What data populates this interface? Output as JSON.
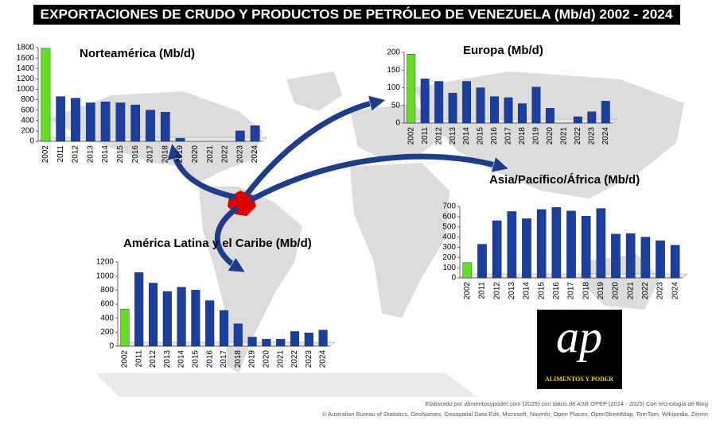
{
  "title": "EXPORTACIONES DE CRUDO Y PRODUCTOS DE PETRÓLEO DE VENEZUELA (Mb/d) 2002 - 2024",
  "chart_data": [
    {
      "type": "bar",
      "title": "Norteamérica (Mb/d)",
      "categories": [
        "2002",
        "2011",
        "2012",
        "2013",
        "2014",
        "2015",
        "2016",
        "2017",
        "2018",
        "2019",
        "2020",
        "2021",
        "2022",
        "2023",
        "2024"
      ],
      "values": [
        1790,
        860,
        830,
        740,
        760,
        740,
        700,
        600,
        560,
        60,
        0,
        0,
        0,
        200,
        300
      ],
      "colors": [
        "#66dd22",
        "#1c3f9e",
        "#1c3f9e",
        "#1c3f9e",
        "#1c3f9e",
        "#1c3f9e",
        "#1c3f9e",
        "#1c3f9e",
        "#1c3f9e",
        "#1c3f9e",
        "#1c3f9e",
        "#1c3f9e",
        "#1c3f9e",
        "#1c3f9e",
        "#1c3f9e"
      ],
      "ylim": [
        0,
        1800
      ],
      "yticks": [
        0,
        200,
        400,
        600,
        800,
        1000,
        1200,
        1400,
        1600,
        1800
      ]
    },
    {
      "type": "bar",
      "title": "Europa (Mb/d)",
      "categories": [
        "2002",
        "2011",
        "2012",
        "2013",
        "2014",
        "2015",
        "2016",
        "2017",
        "2018",
        "2019",
        "2020",
        "2021",
        "2022",
        "2023",
        "2024"
      ],
      "values": [
        195,
        125,
        118,
        85,
        118,
        100,
        75,
        72,
        55,
        102,
        42,
        0,
        18,
        32,
        62
      ],
      "colors": [
        "#66dd22",
        "#1c3f9e",
        "#1c3f9e",
        "#1c3f9e",
        "#1c3f9e",
        "#1c3f9e",
        "#1c3f9e",
        "#1c3f9e",
        "#1c3f9e",
        "#1c3f9e",
        "#1c3f9e",
        "#1c3f9e",
        "#1c3f9e",
        "#1c3f9e",
        "#1c3f9e"
      ],
      "ylim": [
        0,
        200
      ],
      "yticks": [
        0,
        50,
        100,
        150,
        200
      ]
    },
    {
      "type": "bar",
      "title": "Asia/Pacífico/África (Mb/d)",
      "categories": [
        "2002",
        "2011",
        "2012",
        "2013",
        "2014",
        "2015",
        "2016",
        "2017",
        "2018",
        "2019",
        "2020",
        "2021",
        "2022",
        "2023",
        "2024"
      ],
      "values": [
        150,
        330,
        560,
        650,
        580,
        670,
        690,
        655,
        605,
        680,
        430,
        435,
        400,
        365,
        320
      ],
      "colors": [
        "#66dd22",
        "#1c3f9e",
        "#1c3f9e",
        "#1c3f9e",
        "#1c3f9e",
        "#1c3f9e",
        "#1c3f9e",
        "#1c3f9e",
        "#1c3f9e",
        "#1c3f9e",
        "#1c3f9e",
        "#1c3f9e",
        "#1c3f9e",
        "#1c3f9e",
        "#1c3f9e"
      ],
      "ylim": [
        0,
        700
      ],
      "yticks": [
        0,
        100,
        200,
        300,
        400,
        500,
        600,
        700
      ]
    },
    {
      "type": "bar",
      "title": "América Latina y el Caribe (Mb/d)",
      "categories": [
        "2002",
        "2011",
        "2012",
        "2013",
        "2014",
        "2015",
        "2016",
        "2017",
        "2018",
        "2019",
        "2020",
        "2021",
        "2022",
        "2023",
        "2024"
      ],
      "values": [
        530,
        1050,
        900,
        780,
        840,
        800,
        650,
        510,
        320,
        130,
        100,
        100,
        210,
        190,
        230
      ],
      "colors": [
        "#66dd22",
        "#1c3f9e",
        "#1c3f9e",
        "#1c3f9e",
        "#1c3f9e",
        "#1c3f9e",
        "#1c3f9e",
        "#1c3f9e",
        "#1c3f9e",
        "#1c3f9e",
        "#1c3f9e",
        "#1c3f9e",
        "#1c3f9e",
        "#1c3f9e",
        "#1c3f9e"
      ],
      "ylim": [
        0,
        1200
      ],
      "yticks": [
        0,
        200,
        400,
        600,
        800,
        1000,
        1200
      ]
    }
  ],
  "logo": {
    "mark": "ap",
    "text": "ALIMENTOS Y PODER"
  },
  "credits": [
    "Elaborado por alimentosypoder.com (2025) con datos de ASB OPEP (2014 - 2025)  Con tecnología de Bing",
    "© Australian Bureau of Statistics, GeoNames, Geospatial Data Edit, Microsoft, Navinfo, Open Places, OpenStreetMap, TomTom, Wikipedia, Zenrin"
  ]
}
